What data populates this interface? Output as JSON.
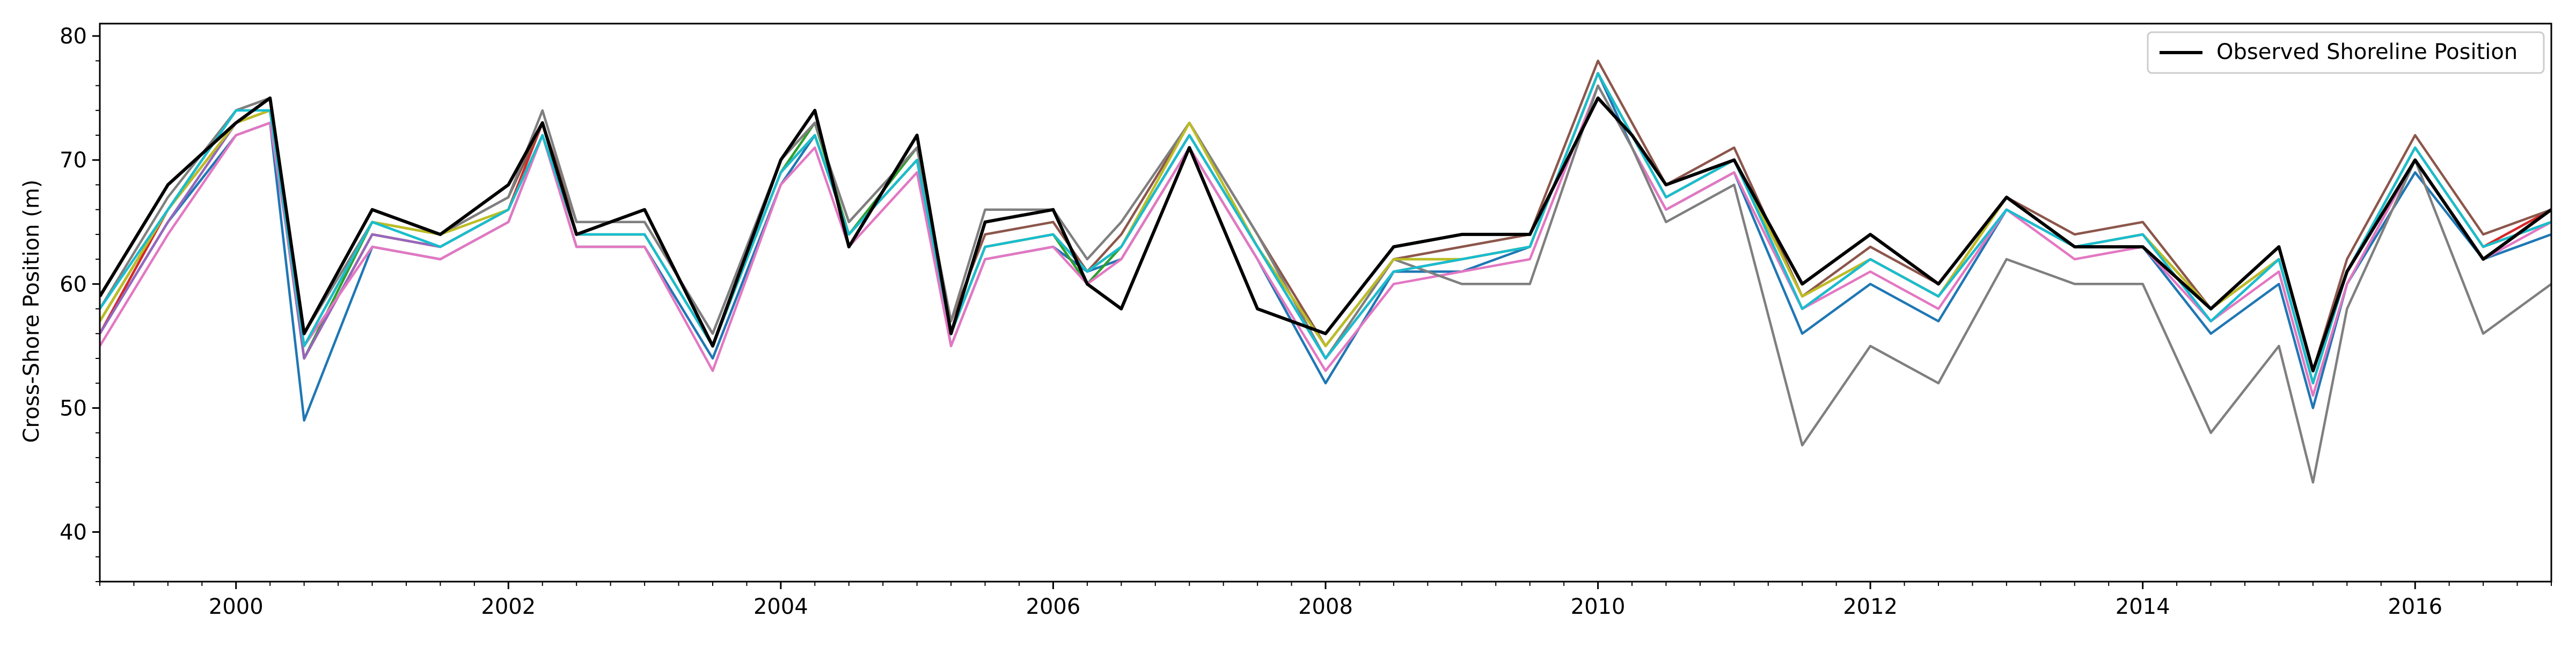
{
  "chart_data": {
    "type": "line",
    "title": "",
    "xlabel": "",
    "ylabel": "Cross-Shore Position (m)",
    "xlim": [
      "1999-01-01",
      "2017-01-01"
    ],
    "ylim": [
      36,
      81
    ],
    "grid": false,
    "legend_position": "top-right",
    "x_ticks": [
      {
        "value": "2000-01-01",
        "label": "2000"
      },
      {
        "value": "2002-01-01",
        "label": "2002"
      },
      {
        "value": "2004-01-01",
        "label": "2004"
      },
      {
        "value": "2006-01-01",
        "label": "2006"
      },
      {
        "value": "2008-01-01",
        "label": "2008"
      },
      {
        "value": "2010-01-01",
        "label": "2010"
      },
      {
        "value": "2012-01-01",
        "label": "2012"
      },
      {
        "value": "2014-01-01",
        "label": "2014"
      },
      {
        "value": "2016-01-01",
        "label": "2016"
      }
    ],
    "y_ticks": [
      40,
      50,
      60,
      70,
      80
    ],
    "x": [
      "1999-01",
      "1999-07",
      "2000-01",
      "2000-04",
      "2000-07",
      "2001-01",
      "2001-07",
      "2002-01",
      "2002-04",
      "2002-07",
      "2003-01",
      "2003-07",
      "2004-01",
      "2004-04",
      "2004-07",
      "2005-01",
      "2005-04",
      "2005-07",
      "2006-01",
      "2006-04",
      "2006-07",
      "2007-01",
      "2007-07",
      "2008-01",
      "2008-07",
      "2009-01",
      "2009-07",
      "2010-01",
      "2010-04",
      "2010-07",
      "2011-01",
      "2011-07",
      "2012-01",
      "2012-07",
      "2013-01",
      "2013-07",
      "2014-01",
      "2014-07",
      "2015-01",
      "2015-04",
      "2015-07",
      "2016-01",
      "2016-07",
      "2017-01"
    ],
    "series": [
      {
        "name": "Observed Shoreline Position",
        "color": "#000000",
        "legend": true,
        "values": [
          59,
          68,
          73,
          75,
          56,
          66,
          64,
          68,
          73,
          64,
          66,
          55,
          70,
          74,
          63,
          72,
          56,
          65,
          66,
          60,
          58,
          71,
          58,
          56,
          63,
          64,
          64,
          75,
          72,
          68,
          70,
          60,
          64,
          60,
          67,
          63,
          63,
          58,
          63,
          53,
          61,
          70,
          62,
          66
        ]
      },
      {
        "color": "#1f77b4",
        "values": [
          56,
          65,
          72,
          73,
          49,
          63,
          62,
          65,
          72,
          63,
          63,
          54,
          68,
          72,
          64,
          70,
          55,
          62,
          63,
          61,
          62,
          71,
          62,
          52,
          61,
          61,
          63,
          77,
          71,
          66,
          69,
          56,
          60,
          57,
          66,
          63,
          63,
          56,
          60,
          50,
          60,
          69,
          62,
          64
        ]
      },
      {
        "color": "#ff7f0e",
        "values": [
          57,
          66,
          73,
          74,
          54,
          64,
          63,
          66,
          72,
          64,
          64,
          55,
          69,
          72,
          64,
          70,
          56,
          63,
          64,
          61,
          63,
          72,
          63,
          54,
          61,
          62,
          63,
          77,
          72,
          67,
          70,
          58,
          62,
          59,
          66,
          63,
          64,
          58,
          62,
          52,
          61,
          71,
          63,
          65
        ]
      },
      {
        "color": "#2ca02c",
        "values": [
          57,
          66,
          74,
          74,
          54,
          65,
          63,
          66,
          73,
          64,
          64,
          55,
          69,
          73,
          64,
          71,
          56,
          63,
          64,
          60,
          63,
          72,
          63,
          55,
          62,
          62,
          63,
          77,
          72,
          67,
          70,
          58,
          62,
          59,
          67,
          63,
          64,
          58,
          62,
          52,
          61,
          71,
          63,
          65
        ]
      },
      {
        "color": "#d62728",
        "values": [
          56,
          66,
          73,
          74,
          54,
          64,
          63,
          66,
          73,
          64,
          64,
          55,
          69,
          72,
          64,
          70,
          56,
          63,
          64,
          61,
          63,
          72,
          63,
          54,
          61,
          62,
          63,
          77,
          72,
          67,
          70,
          59,
          62,
          59,
          67,
          63,
          64,
          58,
          62,
          52,
          61,
          71,
          63,
          66
        ]
      },
      {
        "color": "#9467bd",
        "values": [
          56,
          65,
          73,
          74,
          54,
          64,
          63,
          66,
          72,
          64,
          64,
          55,
          69,
          72,
          64,
          70,
          56,
          63,
          64,
          61,
          63,
          72,
          63,
          54,
          61,
          62,
          63,
          77,
          72,
          67,
          70,
          58,
          62,
          59,
          66,
          63,
          64,
          57,
          62,
          52,
          61,
          71,
          63,
          65
        ]
      },
      {
        "color": "#8c564b",
        "values": [
          57,
          66,
          74,
          75,
          55,
          65,
          64,
          67,
          73,
          65,
          65,
          56,
          70,
          73,
          65,
          71,
          57,
          64,
          65,
          61,
          64,
          73,
          64,
          55,
          62,
          63,
          64,
          78,
          73,
          68,
          71,
          59,
          63,
          60,
          67,
          64,
          65,
          58,
          63,
          53,
          62,
          72,
          64,
          66
        ]
      },
      {
        "color": "#e377c2",
        "values": [
          55,
          64,
          72,
          73,
          55,
          63,
          62,
          65,
          72,
          63,
          63,
          53,
          68,
          71,
          63,
          69,
          55,
          62,
          63,
          60,
          62,
          71,
          62,
          53,
          60,
          61,
          62,
          76,
          71,
          66,
          69,
          58,
          61,
          58,
          66,
          62,
          63,
          57,
          61,
          51,
          60,
          70,
          62,
          65
        ]
      },
      {
        "color": "#7f7f7f",
        "values": [
          58,
          67,
          74,
          75,
          56,
          65,
          64,
          67,
          74,
          65,
          65,
          56,
          70,
          73,
          65,
          71,
          57,
          66,
          66,
          62,
          65,
          73,
          64,
          54,
          62,
          60,
          60,
          76,
          71,
          65,
          68,
          47,
          55,
          52,
          62,
          60,
          60,
          48,
          55,
          44,
          58,
          70,
          56,
          60
        ]
      },
      {
        "color": "#bcbd22",
        "values": [
          57,
          66,
          73,
          74,
          55,
          65,
          64,
          66,
          72,
          64,
          64,
          55,
          69,
          72,
          64,
          70,
          56,
          63,
          64,
          61,
          63,
          73,
          63,
          55,
          62,
          62,
          63,
          77,
          72,
          67,
          70,
          59,
          62,
          59,
          67,
          63,
          64,
          58,
          62,
          52,
          61,
          71,
          63,
          65
        ]
      },
      {
        "color": "#17becf",
        "values": [
          58,
          66,
          74,
          74,
          55,
          65,
          63,
          66,
          72,
          64,
          64,
          55,
          69,
          72,
          64,
          70,
          56,
          63,
          64,
          61,
          63,
          72,
          63,
          54,
          61,
          62,
          63,
          77,
          72,
          67,
          70,
          58,
          62,
          59,
          66,
          63,
          64,
          57,
          62,
          52,
          61,
          71,
          63,
          65
        ]
      }
    ]
  }
}
